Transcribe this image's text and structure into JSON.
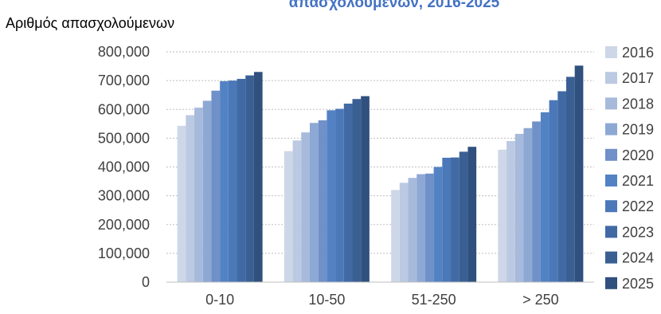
{
  "chart_data": {
    "type": "bar",
    "title": "απασχολούμενων, 2016-2025",
    "ylabel": "Αριθμός απασχολούμενων",
    "xlabel": "",
    "categories": [
      "0-10",
      "10-50",
      "51-250",
      "> 250"
    ],
    "ylim": [
      0,
      800000
    ],
    "yticks": [
      "0",
      "100,000",
      "200,000",
      "300,000",
      "400,000",
      "500,000",
      "600,000",
      "700,000",
      "800,000"
    ],
    "grid": true,
    "legend_position": "right",
    "series": [
      {
        "name": "2016",
        "color": "#cdd7e8",
        "values": [
          543000,
          455000,
          320000,
          460000
        ]
      },
      {
        "name": "2017",
        "color": "#bcc9e2",
        "values": [
          580000,
          492000,
          345000,
          490000
        ]
      },
      {
        "name": "2018",
        "color": "#a7badb",
        "values": [
          606000,
          520000,
          362000,
          515000
        ]
      },
      {
        "name": "2019",
        "color": "#8ea8d4",
        "values": [
          630000,
          553000,
          375000,
          535000
        ]
      },
      {
        "name": "2020",
        "color": "#6f90c8",
        "values": [
          665000,
          562000,
          377000,
          558000
        ]
      },
      {
        "name": "2021",
        "color": "#5382c4",
        "values": [
          698000,
          597000,
          400000,
          590000
        ]
      },
      {
        "name": "2022",
        "color": "#4b78b8",
        "values": [
          700000,
          602000,
          432000,
          632000
        ]
      },
      {
        "name": "2023",
        "color": "#416aa5",
        "values": [
          706000,
          620000,
          433000,
          663000
        ]
      },
      {
        "name": "2024",
        "color": "#3a5f93",
        "values": [
          718000,
          636000,
          453000,
          713000
        ]
      },
      {
        "name": "2025",
        "color": "#30507e",
        "values": [
          730000,
          646000,
          470000,
          752000
        ]
      }
    ]
  }
}
